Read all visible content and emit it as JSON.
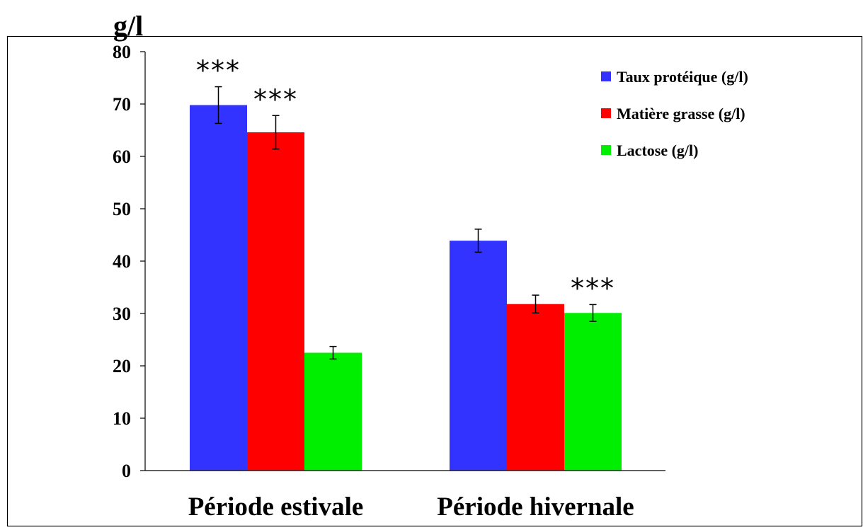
{
  "chart_data": {
    "type": "bar",
    "ylabel": "g/l",
    "ylim": [
      0,
      80
    ],
    "yticks": [
      0,
      10,
      20,
      30,
      40,
      50,
      60,
      70,
      80
    ],
    "categories": [
      "Période estivale",
      "Période hivernale"
    ],
    "series": [
      {
        "name": "Taux protéique (g/l)",
        "color": "#3333ff",
        "values": [
          69.8,
          43.9
        ],
        "errors": [
          3.5,
          2.2
        ],
        "annotations": [
          "***",
          ""
        ]
      },
      {
        "name": "Matière grasse (g/l)",
        "color": "#ff0000",
        "values": [
          64.6,
          31.8
        ],
        "errors": [
          3.2,
          1.7
        ],
        "annotations": [
          "***",
          ""
        ]
      },
      {
        "name": "Lactose (g/l)",
        "color": "#00ee00",
        "values": [
          22.5,
          30.1
        ],
        "errors": [
          1.2,
          1.6
        ],
        "annotations": [
          "",
          "***"
        ]
      }
    ],
    "legend_position": "top-right",
    "grid": false
  }
}
